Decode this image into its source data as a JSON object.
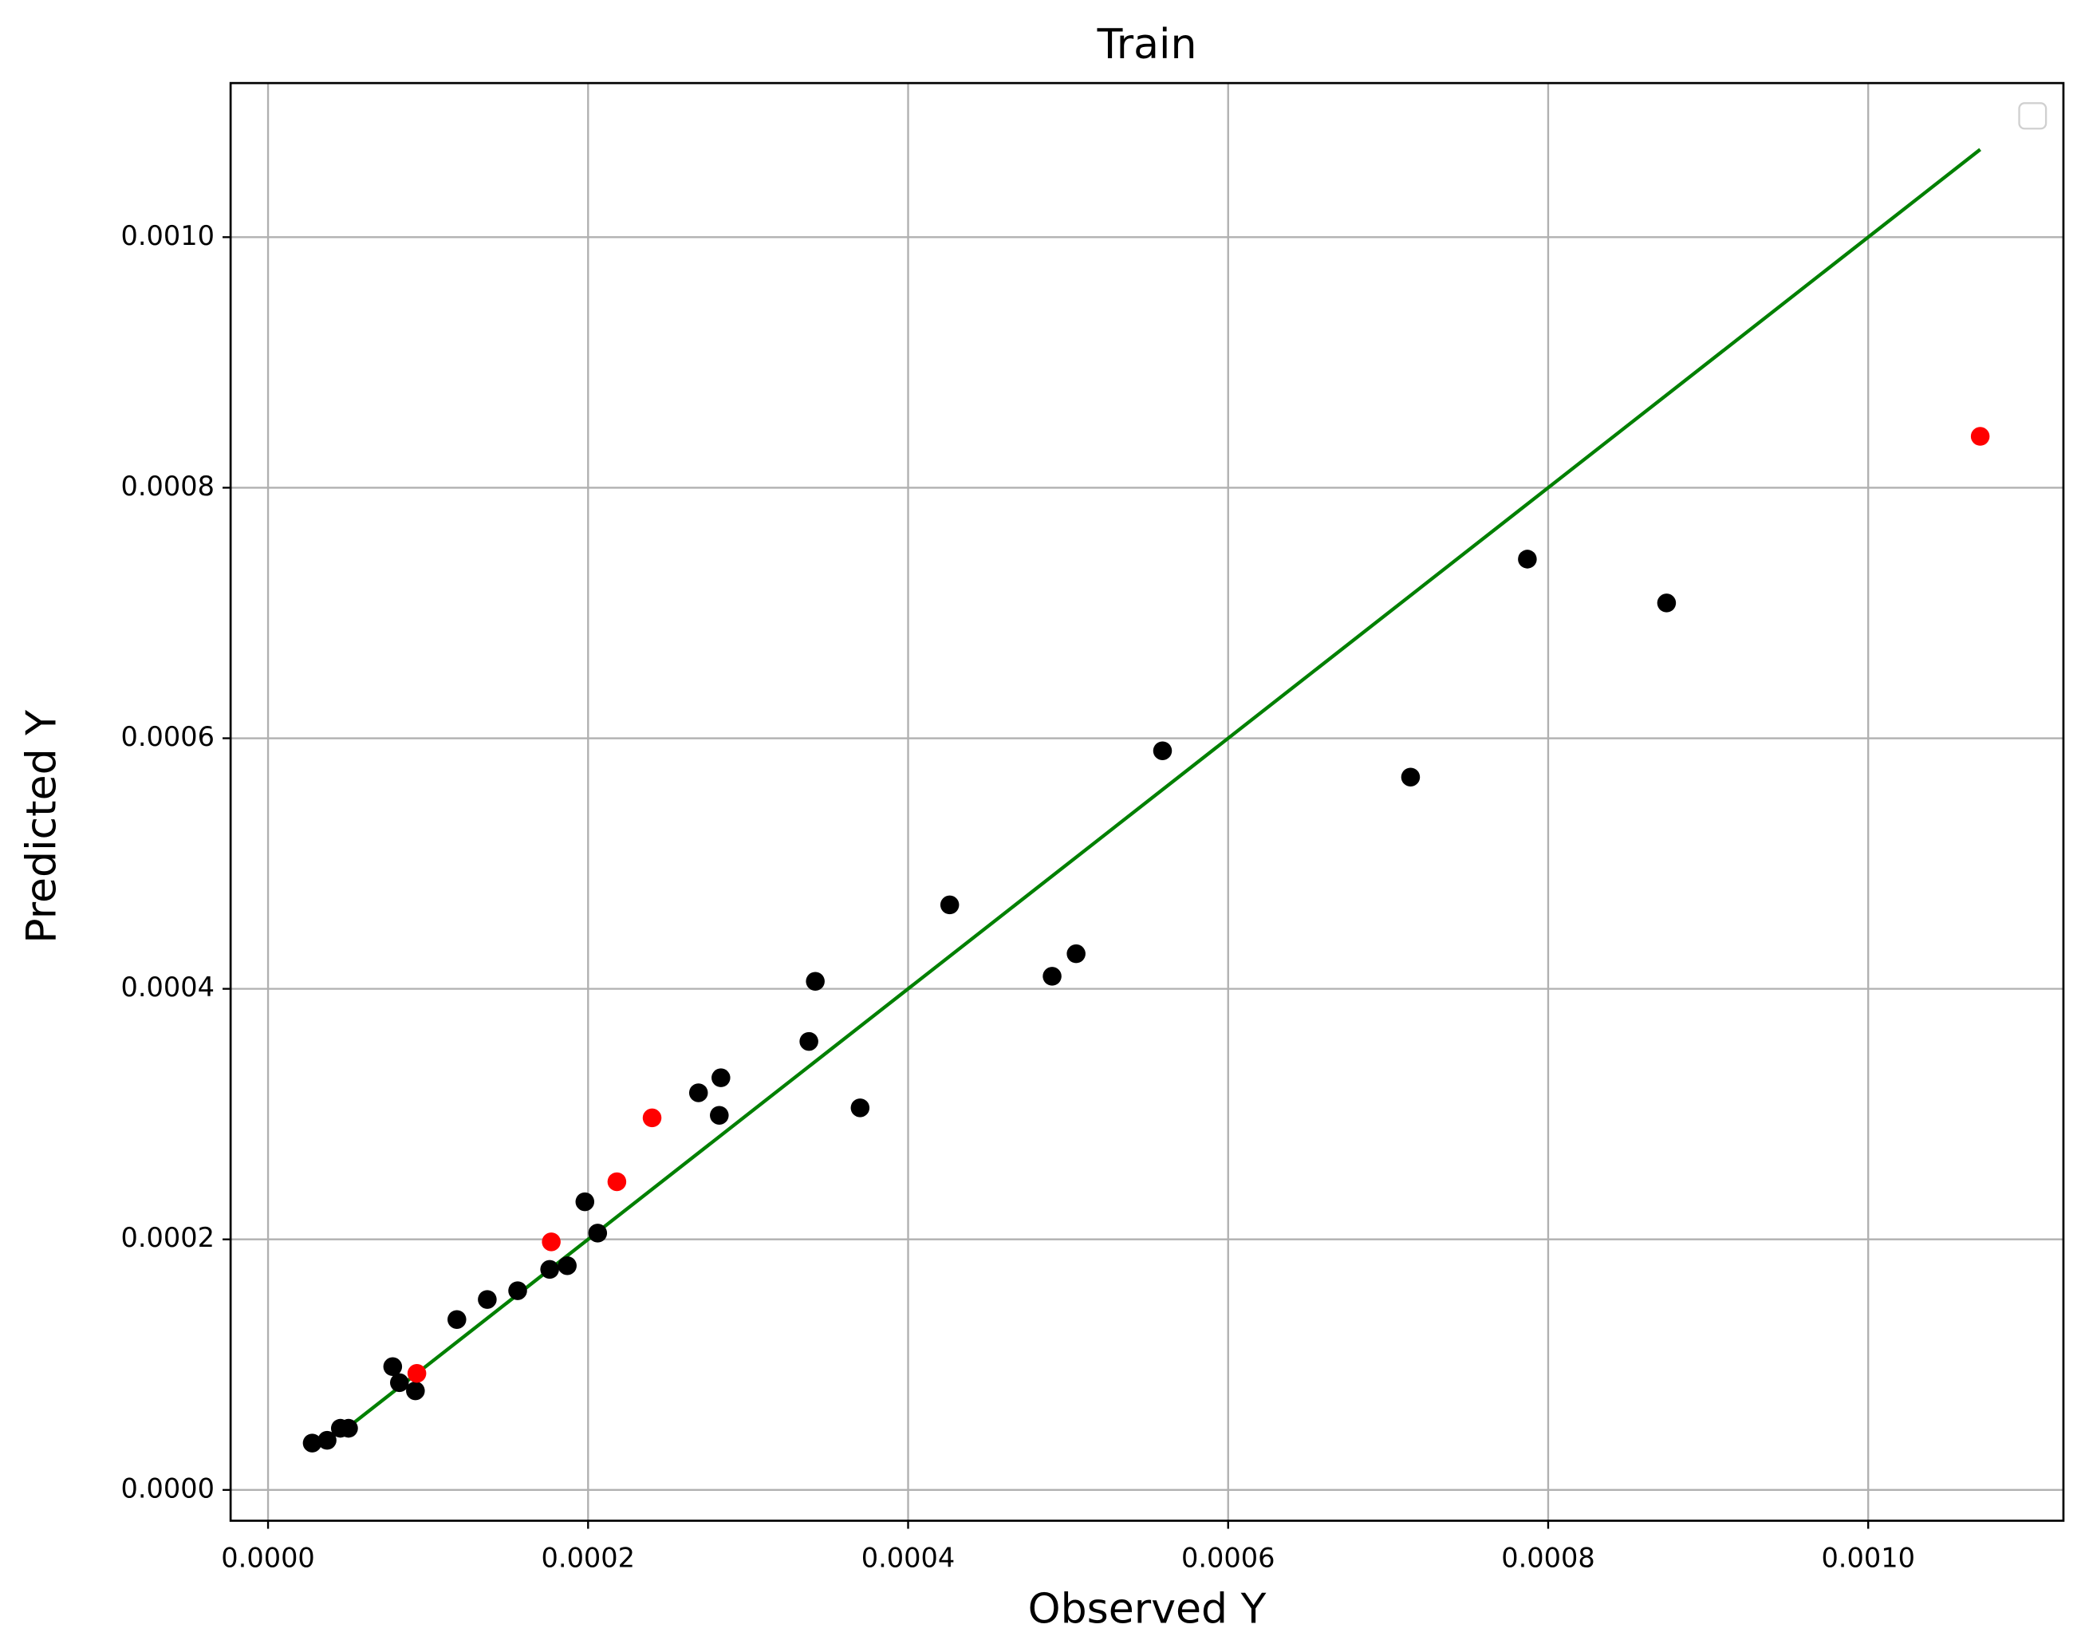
{
  "chart_data": {
    "type": "scatter",
    "title": "Train",
    "xlabel": "Observed Y",
    "ylabel": "Predicted Y",
    "grid": true,
    "legend": "upper right",
    "xlim": [
      -2.34e-05,
      0.001122
    ],
    "ylim": [
      -2.46e-05,
      0.001123
    ],
    "xticks": [
      {
        "value": 0,
        "label": "0.0000"
      },
      {
        "value": 0.0002,
        "label": "0.0002"
      },
      {
        "value": 0.0004,
        "label": "0.0004"
      },
      {
        "value": 0.0006,
        "label": "0.0006"
      },
      {
        "value": 0.0008,
        "label": "0.0008"
      },
      {
        "value": 0.001,
        "label": "0.0010"
      }
    ],
    "yticks": [
      {
        "value": 0,
        "label": "0.0000"
      },
      {
        "value": 0.0002,
        "label": "0.0002"
      },
      {
        "value": 0.0004,
        "label": "0.0004"
      },
      {
        "value": 0.0006,
        "label": "0.0006"
      },
      {
        "value": 0.0008,
        "label": "0.0008"
      },
      {
        "value": 0.001,
        "label": "0.0010"
      }
    ],
    "series": [
      {
        "type": "line",
        "color": "#008000",
        "x": [
          4.6e-05,
          0.00107
        ],
        "values": [
          4.6e-05,
          0.00107
        ]
      },
      {
        "type": "scatter",
        "color": "#000000",
        "x": [
          2.76e-05,
          3.69e-05,
          4.52e-05,
          5.03e-05,
          7.79e-05,
          8.21e-05,
          9.21e-05,
          0.000118,
          0.000137,
          0.000156,
          0.000176,
          0.000187,
          0.000198,
          0.000206,
          0.000269,
          0.000282,
          0.000283,
          0.000338,
          0.000342,
          0.00037,
          0.000426,
          0.00049,
          0.000505,
          0.000559,
          0.000714,
          0.000787,
          0.000874
        ],
        "values": [
          3.74e-05,
          3.96e-05,
          4.92e-05,
          4.92e-05,
          9.84e-05,
          8.56e-05,
          7.91e-05,
          0.000136,
          0.000152,
          0.000159,
          0.000176,
          0.000179,
          0.00023,
          0.000205,
          0.000317,
          0.000299,
          0.000329,
          0.000358,
          0.000406,
          0.000305,
          0.000467,
          0.00041,
          0.000428,
          0.00059,
          0.000569,
          0.000743,
          0.000708
        ]
      },
      {
        "type": "scatter",
        "color": "#ff0000",
        "x": [
          9.3e-05,
          0.000177,
          0.000218,
          0.00024,
          0.00107
        ],
        "values": [
          9.3e-05,
          0.000198,
          0.000246,
          0.000297,
          0.000841
        ]
      }
    ]
  }
}
